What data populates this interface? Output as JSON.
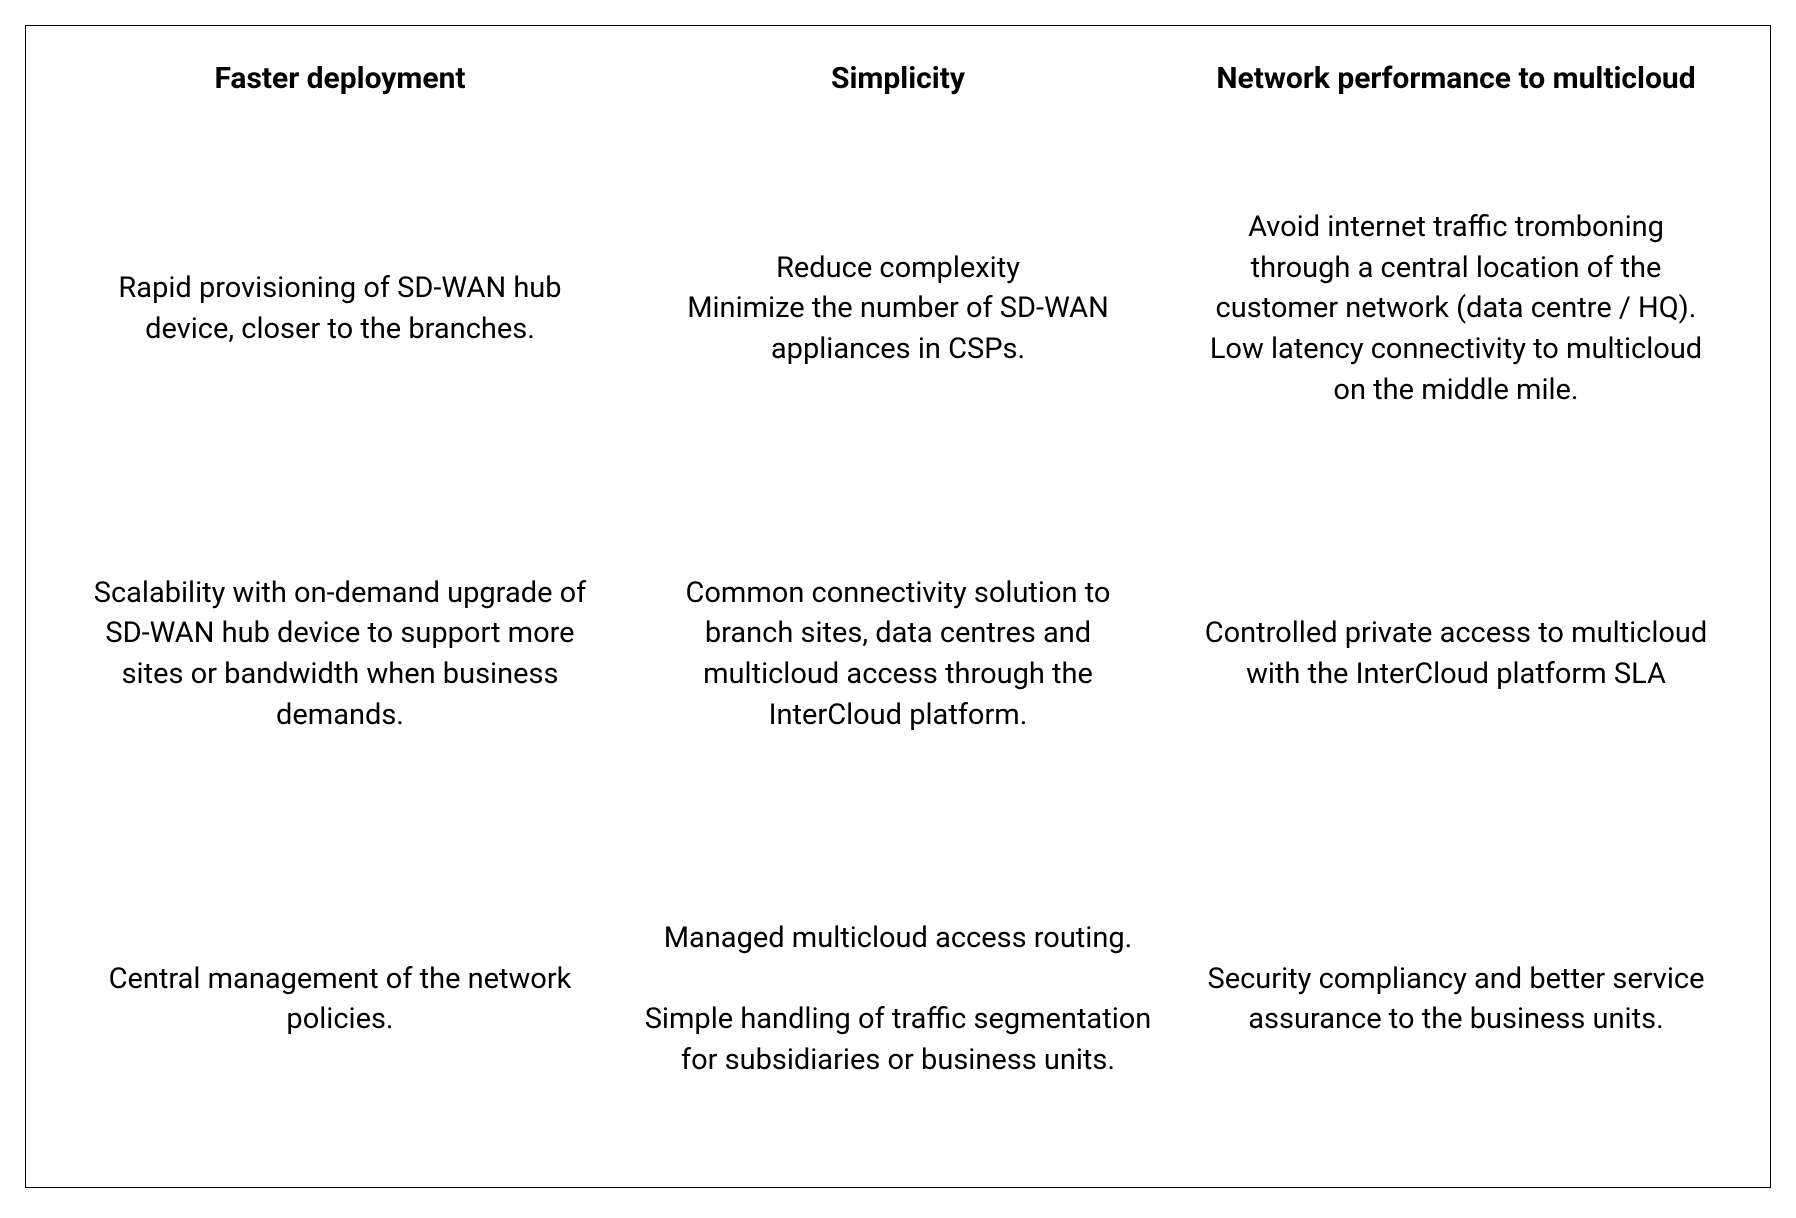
{
  "table": {
    "border_color": "#000000",
    "background_color": "#ffffff",
    "text_color": "#000000",
    "header_fontsize": 30,
    "header_fontweight": 700,
    "body_fontsize": 29,
    "body_fontweight": 400,
    "line_height": 1.4,
    "columns": [
      {
        "header": "Faster deployment",
        "rows": [
          "Rapid provisioning of SD-WAN hub device, closer to the branches.",
          "Scalability with on-demand upgrade of SD-WAN hub device to support more sites or bandwidth when business demands.",
          "Central management of the network policies."
        ]
      },
      {
        "header": "Simplicity",
        "rows": [
          "Reduce complexity\nMinimize the number of SD-WAN appliances in CSPs.",
          "Common connectivity solution to branch sites, data centres and multicloud access through the InterCloud platform.",
          "Managed multicloud access routing.\n\nSimple handling of traffic segmentation for subsidiaries or business units."
        ]
      },
      {
        "header": "Network performance to multicloud",
        "rows": [
          "Avoid internet traffic tromboning through a central location of the customer network (data centre / HQ).\nLow latency connectivity to multicloud on the middle mile.",
          "Controlled private access to multicloud with the InterCloud platform SLA",
          "Security compliancy and better service assurance to the business units."
        ]
      }
    ]
  }
}
